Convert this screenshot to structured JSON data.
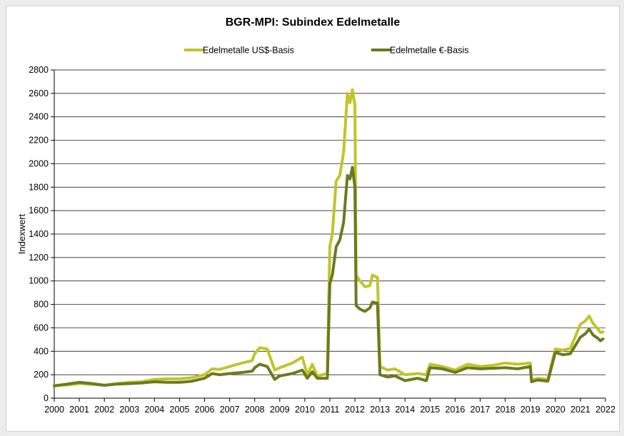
{
  "chart_data": {
    "type": "line",
    "title": "BGR-MPI:  Subindex Edelmetalle",
    "ylabel": "Indexwert",
    "xlabel": "",
    "ylim": [
      0,
      2800
    ],
    "xlim": [
      2000,
      2022
    ],
    "yticks": [
      "0",
      "200",
      "400",
      "600",
      "800",
      "1000",
      "1200",
      "1400",
      "1600",
      "1800",
      "2000",
      "2200",
      "2400",
      "2600",
      "2800"
    ],
    "xticks": [
      "2000",
      "2001",
      "2002",
      "2003",
      "2004",
      "2005",
      "2006",
      "2007",
      "2008",
      "2009",
      "2010",
      "2011",
      "2012",
      "2013",
      "2014",
      "2015",
      "2016",
      "2017",
      "2018",
      "2019",
      "2020",
      "2021",
      "2022"
    ],
    "grid": "horizontal",
    "legend": "top",
    "series": [
      {
        "name": "Edelmetalle US$-Basis",
        "color": "#c2c42a",
        "points": [
          [
            2000.0,
            110
          ],
          [
            2000.5,
            112
          ],
          [
            2001.0,
            125
          ],
          [
            2001.5,
            118
          ],
          [
            2002.0,
            110
          ],
          [
            2002.5,
            125
          ],
          [
            2003.0,
            135
          ],
          [
            2003.5,
            140
          ],
          [
            2004.0,
            160
          ],
          [
            2004.5,
            165
          ],
          [
            2005.0,
            165
          ],
          [
            2005.5,
            175
          ],
          [
            2006.0,
            200
          ],
          [
            2006.3,
            250
          ],
          [
            2006.6,
            245
          ],
          [
            2007.0,
            270
          ],
          [
            2007.5,
            300
          ],
          [
            2007.9,
            320
          ],
          [
            2008.0,
            380
          ],
          [
            2008.2,
            430
          ],
          [
            2008.5,
            420
          ],
          [
            2008.8,
            240
          ],
          [
            2009.0,
            260
          ],
          [
            2009.5,
            300
          ],
          [
            2009.9,
            350
          ],
          [
            2010.1,
            200
          ],
          [
            2010.3,
            290
          ],
          [
            2010.5,
            190
          ],
          [
            2010.9,
            210
          ],
          [
            2011.0,
            1300
          ],
          [
            2011.1,
            1400
          ],
          [
            2011.25,
            1850
          ],
          [
            2011.4,
            1900
          ],
          [
            2011.55,
            2100
          ],
          [
            2011.7,
            2600
          ],
          [
            2011.8,
            2520
          ],
          [
            2011.9,
            2630
          ],
          [
            2012.0,
            2500
          ],
          [
            2012.05,
            1050
          ],
          [
            2012.2,
            1000
          ],
          [
            2012.4,
            950
          ],
          [
            2012.6,
            960
          ],
          [
            2012.7,
            1050
          ],
          [
            2012.9,
            1030
          ],
          [
            2013.0,
            270
          ],
          [
            2013.3,
            240
          ],
          [
            2013.6,
            250
          ],
          [
            2014.0,
            200
          ],
          [
            2014.5,
            210
          ],
          [
            2014.85,
            200
          ],
          [
            2015.0,
            290
          ],
          [
            2015.5,
            270
          ],
          [
            2016.0,
            240
          ],
          [
            2016.5,
            290
          ],
          [
            2017.0,
            270
          ],
          [
            2017.5,
            280
          ],
          [
            2018.0,
            300
          ],
          [
            2018.5,
            290
          ],
          [
            2019.0,
            300
          ],
          [
            2019.05,
            155
          ],
          [
            2019.3,
            170
          ],
          [
            2019.7,
            160
          ],
          [
            2020.0,
            420
          ],
          [
            2020.3,
            410
          ],
          [
            2020.6,
            425
          ],
          [
            2021.0,
            630
          ],
          [
            2021.2,
            660
          ],
          [
            2021.35,
            700
          ],
          [
            2021.5,
            640
          ],
          [
            2021.7,
            590
          ],
          [
            2021.8,
            560
          ],
          [
            2021.9,
            565
          ]
        ]
      },
      {
        "name": "Edelmetalle €-Basis",
        "color": "#6b7a1f",
        "points": [
          [
            2000.0,
            105
          ],
          [
            2000.5,
            120
          ],
          [
            2001.0,
            135
          ],
          [
            2001.5,
            125
          ],
          [
            2002.0,
            110
          ],
          [
            2002.5,
            120
          ],
          [
            2003.0,
            125
          ],
          [
            2003.5,
            130
          ],
          [
            2004.0,
            140
          ],
          [
            2004.5,
            135
          ],
          [
            2005.0,
            135
          ],
          [
            2005.5,
            145
          ],
          [
            2006.0,
            170
          ],
          [
            2006.3,
            210
          ],
          [
            2006.6,
            200
          ],
          [
            2007.0,
            210
          ],
          [
            2007.5,
            220
          ],
          [
            2007.9,
            230
          ],
          [
            2008.0,
            260
          ],
          [
            2008.2,
            290
          ],
          [
            2008.5,
            270
          ],
          [
            2008.8,
            160
          ],
          [
            2009.0,
            190
          ],
          [
            2009.5,
            210
          ],
          [
            2009.9,
            240
          ],
          [
            2010.1,
            170
          ],
          [
            2010.3,
            225
          ],
          [
            2010.5,
            170
          ],
          [
            2010.9,
            170
          ],
          [
            2011.0,
            980
          ],
          [
            2011.1,
            1050
          ],
          [
            2011.25,
            1290
          ],
          [
            2011.4,
            1350
          ],
          [
            2011.55,
            1500
          ],
          [
            2011.7,
            1900
          ],
          [
            2011.8,
            1870
          ],
          [
            2011.9,
            1970
          ],
          [
            2012.0,
            1800
          ],
          [
            2012.05,
            790
          ],
          [
            2012.2,
            760
          ],
          [
            2012.4,
            740
          ],
          [
            2012.6,
            770
          ],
          [
            2012.7,
            820
          ],
          [
            2012.9,
            810
          ],
          [
            2013.0,
            200
          ],
          [
            2013.3,
            180
          ],
          [
            2013.6,
            190
          ],
          [
            2014.0,
            150
          ],
          [
            2014.5,
            170
          ],
          [
            2014.85,
            150
          ],
          [
            2015.0,
            260
          ],
          [
            2015.5,
            250
          ],
          [
            2016.0,
            220
          ],
          [
            2016.5,
            260
          ],
          [
            2017.0,
            250
          ],
          [
            2017.5,
            255
          ],
          [
            2018.0,
            260
          ],
          [
            2018.5,
            250
          ],
          [
            2019.0,
            270
          ],
          [
            2019.05,
            140
          ],
          [
            2019.3,
            155
          ],
          [
            2019.7,
            145
          ],
          [
            2020.0,
            390
          ],
          [
            2020.3,
            370
          ],
          [
            2020.6,
            380
          ],
          [
            2021.0,
            520
          ],
          [
            2021.2,
            550
          ],
          [
            2021.35,
            590
          ],
          [
            2021.5,
            540
          ],
          [
            2021.7,
            510
          ],
          [
            2021.8,
            490
          ],
          [
            2021.9,
            505
          ]
        ]
      }
    ]
  }
}
